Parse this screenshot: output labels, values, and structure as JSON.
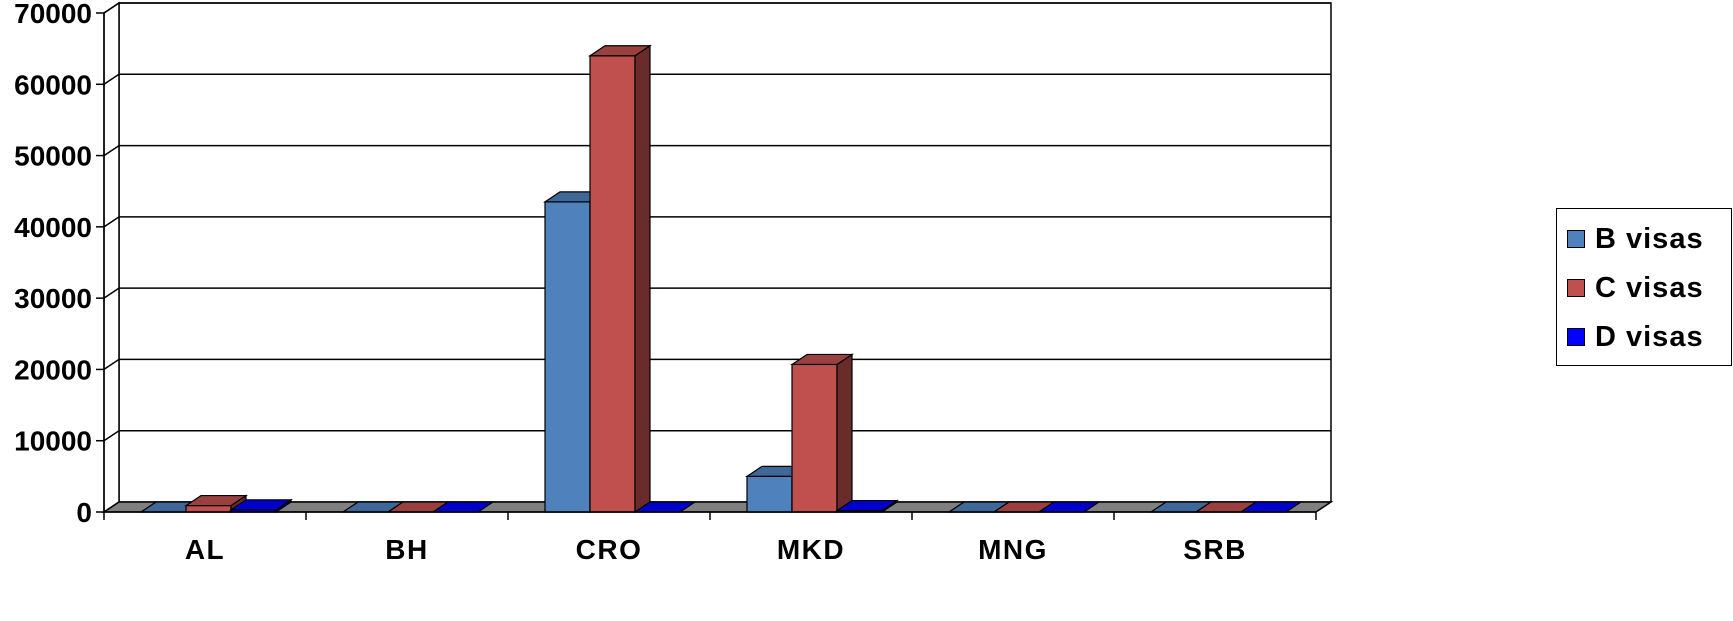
{
  "chart_data": {
    "type": "bar",
    "categories": [
      "AL",
      "BH",
      "CRO",
      "MKD",
      "MNG",
      "SRB"
    ],
    "series": [
      {
        "name": "B visas",
        "values": [
          0,
          0,
          43500,
          5000,
          0,
          0
        ],
        "color": "#4f81bd"
      },
      {
        "name": "C visas",
        "values": [
          900,
          0,
          64000,
          20700,
          0,
          0
        ],
        "color": "#c0504d"
      },
      {
        "name": "D visas",
        "values": [
          300,
          0,
          0,
          200,
          0,
          0
        ],
        "color": "#0000ff"
      }
    ],
    "ylim": [
      0,
      70000
    ],
    "yticks": [
      0,
      10000,
      20000,
      30000,
      40000,
      50000,
      60000,
      70000
    ],
    "title": "",
    "xlabel": "",
    "ylabel": "",
    "grid": true,
    "legend_position": "right",
    "style": "3d-clustered-column"
  }
}
